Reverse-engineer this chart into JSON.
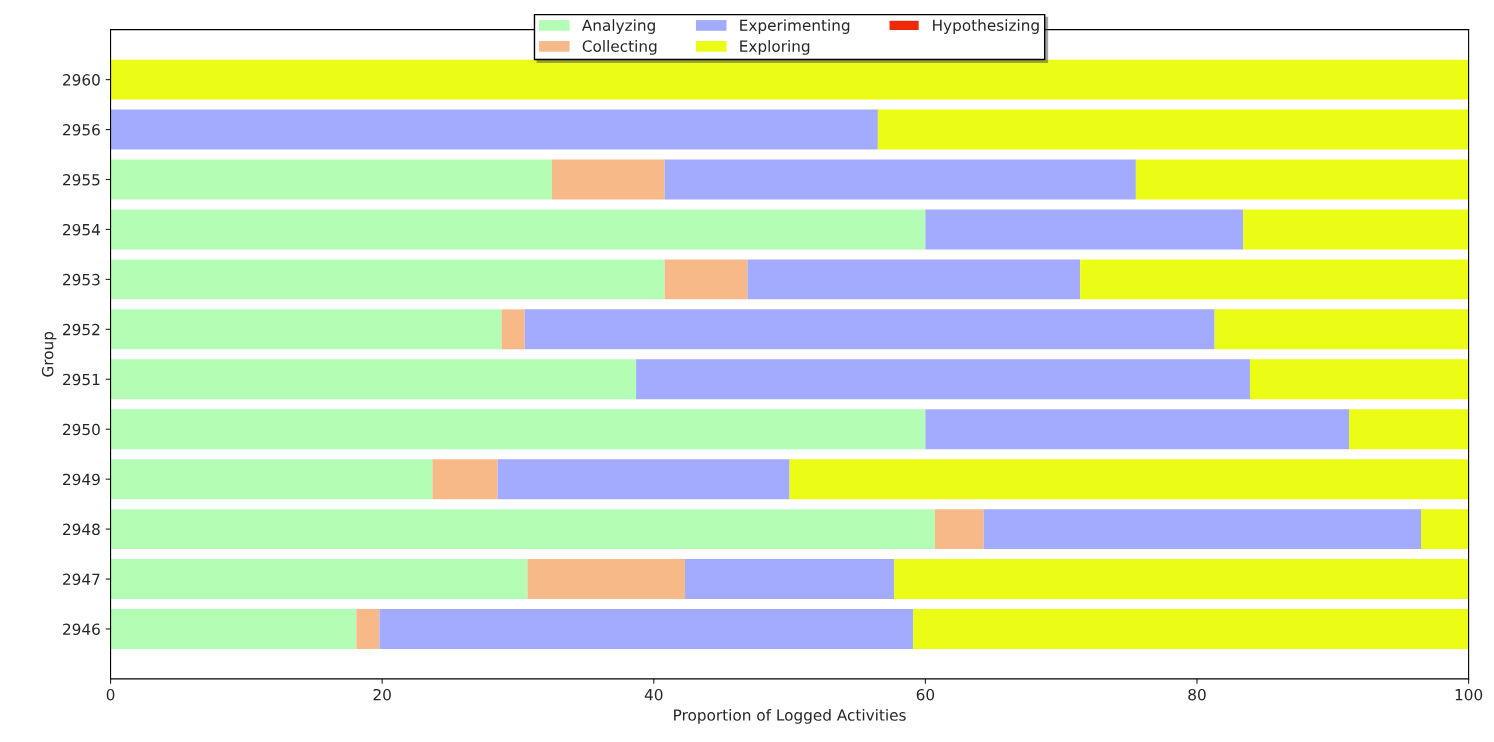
{
  "chart_data": {
    "type": "bar",
    "orientation": "horizontal",
    "stacked": true,
    "xlabel": "Proportion of Logged Activities",
    "ylabel": "Group",
    "categories": [
      "2960",
      "2956",
      "2955",
      "2954",
      "2953",
      "2952",
      "2951",
      "2950",
      "2949",
      "2948",
      "2947",
      "2946"
    ],
    "series": [
      {
        "name": "Analyzing",
        "color": "#b3fdb5",
        "values": [
          null,
          null,
          32.5,
          60.0,
          40.8,
          28.8,
          38.7,
          60.0,
          23.7,
          60.7,
          30.7,
          18.1
        ]
      },
      {
        "name": "Collecting",
        "color": "#f7b987",
        "values": [
          null,
          null,
          8.3,
          null,
          6.1,
          1.7,
          null,
          null,
          4.8,
          3.6,
          11.6,
          1.7
        ]
      },
      {
        "name": "Experimenting",
        "color": "#a3abff",
        "values": [
          null,
          56.5,
          34.7,
          23.4,
          24.5,
          50.8,
          45.2,
          31.2,
          21.5,
          32.2,
          15.4,
          39.3
        ]
      },
      {
        "name": "Exploring",
        "color": "#ebfd14",
        "values": [
          100,
          43.5,
          24.5,
          16.6,
          28.6,
          18.7,
          16.1,
          8.8,
          50.0,
          3.5,
          42.3,
          40.9
        ]
      },
      {
        "name": "Hypothesizing",
        "color": "#ee2a0a",
        "values": [
          null,
          null,
          null,
          null,
          null,
          null,
          null,
          null,
          null,
          null,
          null,
          null
        ]
      }
    ],
    "xlim": [
      0,
      100
    ],
    "xticks": [
      0,
      20,
      40,
      60,
      80,
      100
    ],
    "grid": false,
    "legend": "top"
  }
}
